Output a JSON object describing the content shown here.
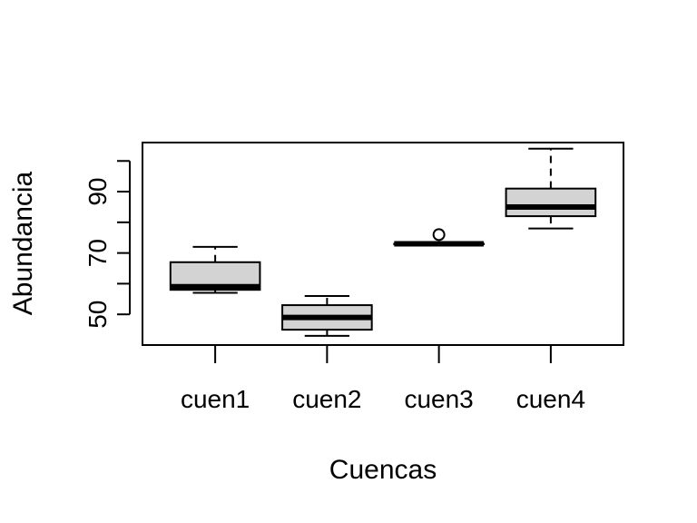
{
  "chart_data": {
    "type": "boxplot",
    "xlabel": "Cuencas",
    "ylabel": "Abundancia",
    "ylim": [
      40,
      106
    ],
    "y_ticks": [
      50,
      60,
      70,
      80,
      90,
      100
    ],
    "y_tick_labels": [
      "50",
      "70",
      "90"
    ],
    "grid": false,
    "colors": {
      "box_fill": "#d3d3d3",
      "stroke": "#000000",
      "background": "#ffffff"
    },
    "categories": [
      "cuen1",
      "cuen2",
      "cuen3",
      "cuen4"
    ],
    "boxes": [
      {
        "name": "cuen1",
        "whisker_low": 57,
        "q1": 58,
        "median": 59,
        "q3": 67,
        "whisker_high": 72,
        "outliers": []
      },
      {
        "name": "cuen2",
        "whisker_low": 43,
        "q1": 45,
        "median": 49,
        "q3": 53,
        "whisker_high": 56,
        "outliers": []
      },
      {
        "name": "cuen3",
        "whisker_low": 73,
        "q1": 73,
        "median": 73,
        "q3": 73,
        "whisker_high": 73,
        "outliers": [
          76
        ]
      },
      {
        "name": "cuen4",
        "whisker_low": 78,
        "q1": 82,
        "median": 85,
        "q3": 91,
        "whisker_high": 104,
        "outliers": []
      }
    ]
  }
}
